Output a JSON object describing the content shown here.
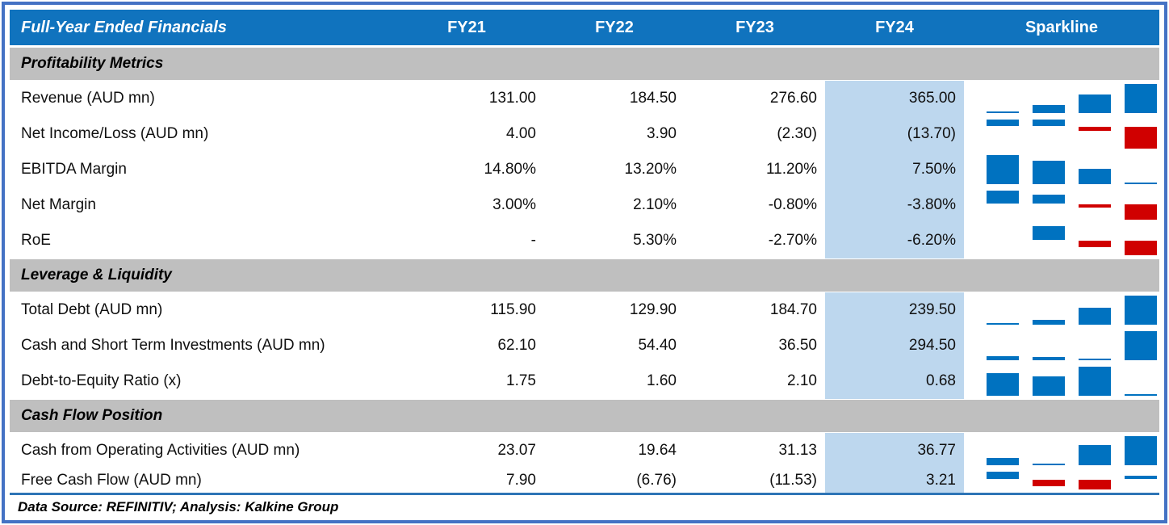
{
  "header": {
    "title": "Full-Year Ended Financials",
    "columns": [
      "FY21",
      "FY22",
      "FY23",
      "FY24"
    ],
    "sparkline_label": "Sparkline"
  },
  "footer": {
    "text": "Data Source: REFINITIV; Analysis: Kalkine Group"
  },
  "colors": {
    "header_bg": "#1073BE",
    "section_bg": "#BFBFBF",
    "fy24_highlight": "#BDD7EE",
    "sparkline_positive": "#0072C0",
    "sparkline_negative": "#D00000",
    "frame_border": "#4472C4",
    "footer_separator": "#2E75B6"
  },
  "chart_data": {
    "type": "table",
    "columns": [
      "FY21",
      "FY22",
      "FY23",
      "FY24"
    ],
    "sparkline_type": "column",
    "sections": [
      {
        "title": "Profitability Metrics",
        "rows": [
          {
            "label": "Revenue (AUD mn)",
            "display": [
              "131.00",
              "184.50",
              "276.60",
              "365.00"
            ],
            "values": [
              131.0,
              184.5,
              276.6,
              365.0
            ]
          },
          {
            "label": "Net Income/Loss (AUD mn)",
            "display": [
              "4.00",
              "3.90",
              "(2.30)",
              "(13.70)"
            ],
            "values": [
              4.0,
              3.9,
              -2.3,
              -13.7
            ]
          },
          {
            "label": "EBITDA Margin",
            "display": [
              "14.80%",
              "13.20%",
              "11.20%",
              "7.50%"
            ],
            "values": [
              14.8,
              13.2,
              11.2,
              7.5
            ]
          },
          {
            "label": "Net Margin",
            "display": [
              "3.00%",
              "2.10%",
              "-0.80%",
              "-3.80%"
            ],
            "values": [
              3.0,
              2.1,
              -0.8,
              -3.8
            ]
          },
          {
            "label": "RoE",
            "display": [
              "-",
              "5.30%",
              "-2.70%",
              "-6.20%"
            ],
            "values": [
              null,
              5.3,
              -2.7,
              -6.2
            ]
          }
        ]
      },
      {
        "title": "Leverage & Liquidity",
        "rows": [
          {
            "label": "Total Debt (AUD mn)",
            "display": [
              "115.90",
              "129.90",
              "184.70",
              "239.50"
            ],
            "values": [
              115.9,
              129.9,
              184.7,
              239.5
            ]
          },
          {
            "label": "Cash and Short Term Investments (AUD mn)",
            "display": [
              "62.10",
              "54.40",
              "36.50",
              "294.50"
            ],
            "values": [
              62.1,
              54.4,
              36.5,
              294.5
            ]
          },
          {
            "label": "Debt-to-Equity Ratio (x)",
            "display": [
              "1.75",
              "1.60",
              "2.10",
              "0.68"
            ],
            "values": [
              1.75,
              1.6,
              2.1,
              0.68
            ]
          }
        ]
      },
      {
        "title": "Cash Flow Position",
        "rows": [
          {
            "label": "Cash from Operating Activities (AUD mn)",
            "display": [
              "23.07",
              "19.64",
              "31.13",
              "36.77"
            ],
            "values": [
              23.07,
              19.64,
              31.13,
              36.77
            ]
          },
          {
            "label": "Free Cash Flow (AUD mn)",
            "display": [
              "7.90",
              "(6.76)",
              "(11.53)",
              "3.21"
            ],
            "values": [
              7.9,
              -6.76,
              -11.53,
              3.21
            ]
          }
        ]
      }
    ]
  }
}
